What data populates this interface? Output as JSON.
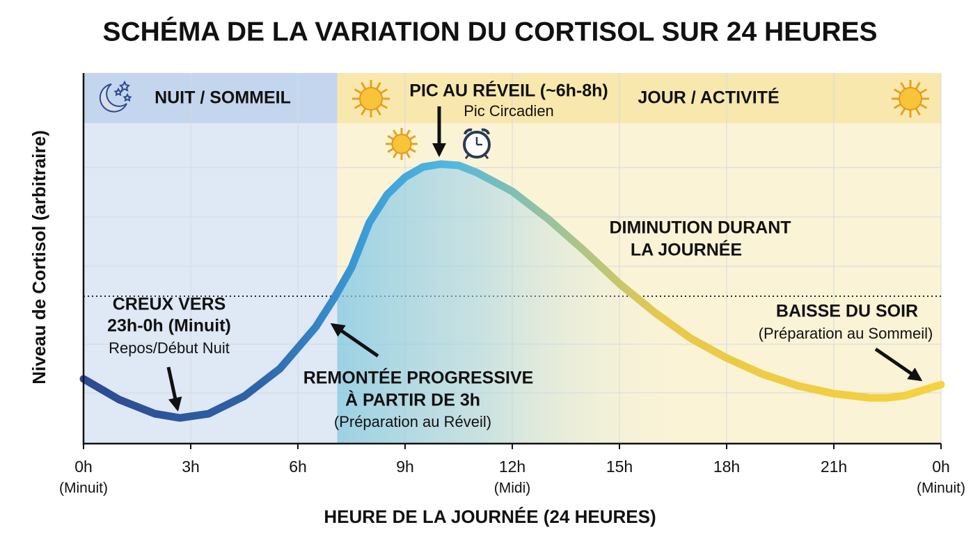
{
  "chart_data": {
    "type": "line",
    "title": "SCHÉMA DE LA VARIATION DU CORTISOL SUR 24 HEURES",
    "x_label": "HEURE DE LA JOURNÉE (24 HEURES)",
    "y_label": "Niveau de Cortisol (arbitraire)",
    "xlim": [
      0,
      24
    ],
    "ylim": [
      0,
      100
    ],
    "xticks": [
      {
        "value": 0,
        "label": "0h"
      },
      {
        "value": 3,
        "label": "3h"
      },
      {
        "value": 6,
        "label": "6h"
      },
      {
        "value": 9,
        "label": "9h"
      },
      {
        "value": 12,
        "label": "12h"
      },
      {
        "value": 15,
        "label": "15h"
      },
      {
        "value": 18,
        "label": "18h"
      },
      {
        "value": 21,
        "label": "21h"
      },
      {
        "value": 24,
        "label": "0h"
      }
    ],
    "xtick_notes": [
      "(Minuit)",
      null,
      null,
      null,
      "(Midi)",
      null,
      null,
      null,
      "(Minuit)"
    ],
    "grid": true,
    "reference_line": 46,
    "x": [
      0,
      1,
      2,
      2.7,
      3.5,
      4.5,
      5.5,
      6.5,
      7,
      7.5,
      8,
      8.5,
      9,
      9.5,
      10,
      10.5,
      11,
      12,
      13,
      14,
      15,
      16,
      17,
      18,
      19,
      20,
      21,
      22,
      22.5,
      23,
      24
    ],
    "series": [
      {
        "name": "Cortisol",
        "color": "#3a86c8",
        "values": [
          20.2,
          13.7,
          9.3,
          8.0,
          9.3,
          14.8,
          23.4,
          36.4,
          45.1,
          54.9,
          69.0,
          77.7,
          83.1,
          86.3,
          87.2,
          86.8,
          84.6,
          78.7,
          70.1,
          60.3,
          49.9,
          40.8,
          32.8,
          26.7,
          21.7,
          18.0,
          15.6,
          14.3,
          14.3,
          15.0,
          18.4
        ]
      }
    ],
    "night_band": {
      "label": "NUIT / SOMMEIL",
      "end": 7.1
    },
    "day_band": {
      "label": "JOUR / ACTIVITÉ"
    },
    "annotations": {
      "peak": [
        "PIC AU RÉVEIL (~6h-8h)",
        "Pic Circadien"
      ],
      "decline": [
        "DIMINUTION DURANT",
        "LA JOURNÉE"
      ],
      "trough": [
        "CREUX VERS",
        "23h-0h (Minuit)",
        "Repos/Début Nuit"
      ],
      "rise": [
        "REMONTÉE PROGRESSIVE",
        "À PARTIR DE 3h",
        "(Préparation au Réveil)"
      ],
      "evening": [
        "BAISSE DU SOIR",
        "(Préparation au Sommeil)"
      ]
    }
  }
}
